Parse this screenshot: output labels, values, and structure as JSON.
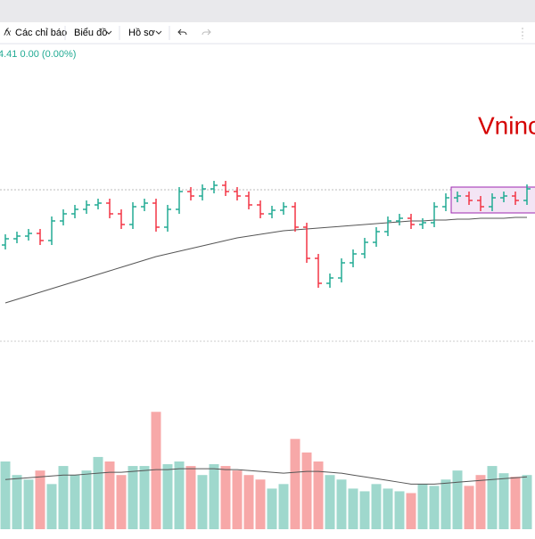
{
  "toolbar": {
    "items": [
      "Các chỉ báo",
      "Biểu đồ",
      "Hồ sơ"
    ]
  },
  "chart_data": {
    "type": "ohlc",
    "legend_text": "4.41 0.00 (0.00%)",
    "annotation": "Vninc",
    "open": [
      1110,
      1117,
      1120,
      1123,
      1115,
      1137,
      1145,
      1150,
      1155,
      1157,
      1145,
      1133,
      1153,
      1157,
      1130,
      1150,
      1170,
      1165,
      1173,
      1177,
      1170,
      1165,
      1155,
      1145,
      1149,
      1153,
      1130,
      1095,
      1067,
      1073,
      1090,
      1100,
      1113,
      1125,
      1137,
      1140,
      1133,
      1135,
      1153,
      1163,
      1165,
      1160,
      1153,
      1163,
      1165,
      1160
    ],
    "high": [
      1122,
      1125,
      1128,
      1128,
      1142,
      1150,
      1155,
      1160,
      1162,
      1162,
      1150,
      1158,
      1162,
      1162,
      1155,
      1175,
      1175,
      1178,
      1182,
      1182,
      1175,
      1170,
      1160,
      1154,
      1158,
      1158,
      1135,
      1100,
      1078,
      1095,
      1105,
      1118,
      1130,
      1142,
      1145,
      1145,
      1140,
      1158,
      1168,
      1170,
      1170,
      1165,
      1168,
      1170,
      1170,
      1178
    ],
    "low": [
      1105,
      1112,
      1115,
      1110,
      1110,
      1132,
      1140,
      1145,
      1150,
      1140,
      1128,
      1128,
      1148,
      1125,
      1125,
      1145,
      1160,
      1160,
      1168,
      1165,
      1160,
      1150,
      1140,
      1140,
      1144,
      1125,
      1090,
      1062,
      1062,
      1068,
      1085,
      1095,
      1108,
      1120,
      1132,
      1128,
      1128,
      1130,
      1148,
      1158,
      1155,
      1148,
      1148,
      1158,
      1155,
      1155
    ],
    "close": [
      1117,
      1120,
      1123,
      1115,
      1137,
      1145,
      1150,
      1155,
      1157,
      1145,
      1133,
      1153,
      1157,
      1130,
      1150,
      1170,
      1165,
      1173,
      1177,
      1170,
      1165,
      1155,
      1145,
      1149,
      1153,
      1130,
      1095,
      1067,
      1073,
      1090,
      1100,
      1113,
      1125,
      1137,
      1140,
      1133,
      1135,
      1153,
      1163,
      1165,
      1160,
      1153,
      1163,
      1165,
      1160,
      1173
    ],
    "ma": [
      1045,
      1049,
      1053,
      1057,
      1061,
      1065,
      1069,
      1073,
      1077,
      1081,
      1085,
      1089,
      1093,
      1097,
      1100,
      1103,
      1106,
      1109,
      1112,
      1115,
      1118,
      1120,
      1122,
      1124,
      1126,
      1127,
      1128,
      1129,
      1130,
      1131,
      1132,
      1133,
      1134,
      1135,
      1136,
      1137,
      1137,
      1138,
      1138,
      1139,
      1139,
      1140,
      1140,
      1140,
      1141,
      1141
    ],
    "volume": [
      75,
      60,
      55,
      65,
      50,
      70,
      60,
      65,
      80,
      75,
      60,
      70,
      70,
      130,
      72,
      75,
      70,
      60,
      72,
      70,
      65,
      60,
      55,
      45,
      50,
      100,
      85,
      75,
      60,
      55,
      45,
      42,
      50,
      45,
      42,
      40,
      50,
      48,
      55,
      65,
      48,
      60,
      70,
      62,
      58,
      60
    ],
    "volume_ma": [
      55,
      56,
      57,
      58,
      59,
      60,
      60,
      61,
      62,
      63,
      63,
      64,
      65,
      66,
      66,
      67,
      67,
      67,
      67,
      66,
      66,
      65,
      64,
      63,
      62,
      63,
      64,
      64,
      63,
      62,
      60,
      58,
      56,
      54,
      52,
      50,
      50,
      50,
      51,
      52,
      53,
      54,
      55,
      56,
      57,
      58
    ],
    "ylim": [
      1000,
      1325
    ],
    "volume_ylim": [
      0,
      150
    ],
    "up_color": "#22ab94",
    "down_color": "#f23645",
    "volume_up_color": "#9fd8cd",
    "volume_down_color": "#f7a8a8",
    "ma_color": "#555555"
  }
}
